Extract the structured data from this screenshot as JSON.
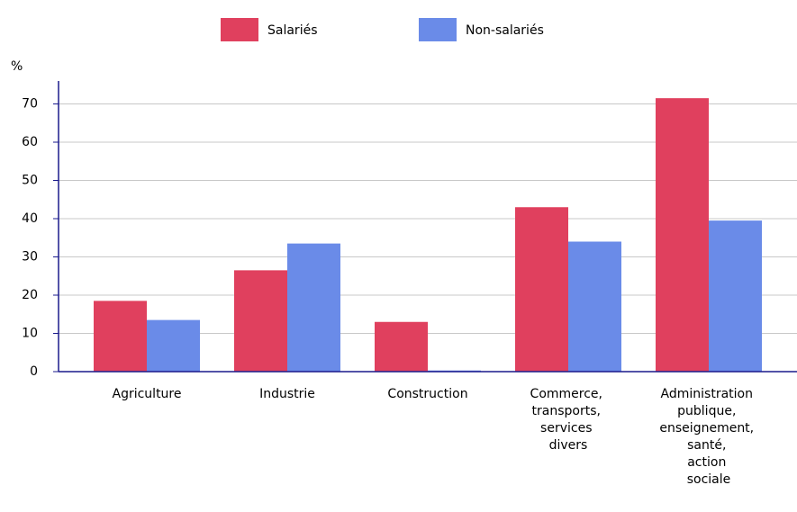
{
  "chart_data": {
    "type": "bar",
    "y_label": "%",
    "categories": [
      "Agriculture",
      "Industrie",
      "Construction",
      "Commerce, transports, services divers",
      "Administration publique, enseignement, santé, action sociale"
    ],
    "series": [
      {
        "name": "Salariés",
        "color": "#e0405e",
        "values": [
          18.5,
          26.5,
          13,
          43,
          71.5
        ]
      },
      {
        "name": "Non-salariés",
        "color": "#6a8be8",
        "values": [
          13.5,
          33.5,
          0.3,
          34,
          39.5
        ]
      }
    ],
    "ylim": [
      0,
      76
    ],
    "yticks": [
      0,
      10,
      20,
      30,
      40,
      50,
      60,
      70
    ],
    "grid": true
  }
}
